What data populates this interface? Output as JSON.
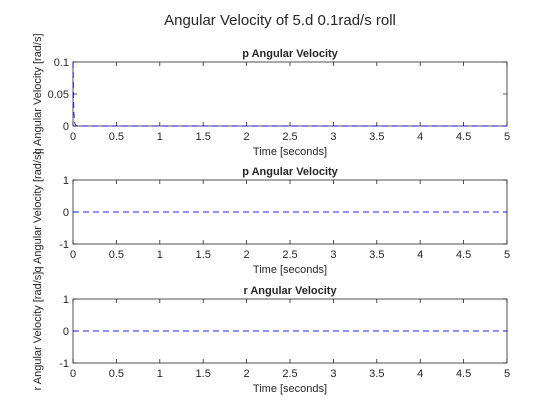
{
  "suptitle": "Angular Velocity of 5.d 0.1rad/s roll",
  "colors": {
    "line": "#0000ff",
    "axes": "#262626",
    "background": "#ffffff"
  },
  "chart_data": [
    {
      "type": "line",
      "title": "p Angular Velocity",
      "xlabel": "Time [seconds]",
      "ylabel": "q Angular Velocity [rad/s]",
      "xlim": [
        0,
        5
      ],
      "ylim": [
        0,
        0.1
      ],
      "xticks": [
        "0",
        "0.5",
        "1",
        "1.5",
        "2",
        "2.5",
        "3",
        "3.5",
        "4",
        "4.5",
        "5"
      ],
      "yticks": [
        "0",
        "0.05",
        "0.1"
      ],
      "ytick_values": [
        0,
        0.05,
        0.1
      ],
      "grid": false,
      "line_style": "dashed",
      "series": [
        {
          "x": [
            0,
            0.005,
            0.01,
            0.02,
            0.03,
            0.05,
            0.1,
            5
          ],
          "y": [
            0.1,
            0.05,
            0.02,
            0.005,
            0.001,
            0,
            0,
            0
          ]
        }
      ]
    },
    {
      "type": "line",
      "title": "p Angular Velocity",
      "xlabel": "Time [seconds]",
      "ylabel": "q Angular Velocity [rad/s]",
      "xlim": [
        0,
        5
      ],
      "ylim": [
        -1,
        1
      ],
      "xticks": [
        "0",
        "0.5",
        "1",
        "1.5",
        "2",
        "2.5",
        "3",
        "3.5",
        "4",
        "4.5",
        "5"
      ],
      "yticks": [
        "-1",
        "0",
        "1"
      ],
      "ytick_values": [
        -1,
        0,
        1
      ],
      "grid": false,
      "line_style": "dashed",
      "series": [
        {
          "x": [
            0,
            5
          ],
          "y": [
            0,
            0
          ]
        }
      ]
    },
    {
      "type": "line",
      "title": "r Angular Velocity",
      "xlabel": "Time [seconds]",
      "ylabel": "r Angular Velocity [rad/s]",
      "xlim": [
        0,
        5
      ],
      "ylim": [
        -1,
        1
      ],
      "xticks": [
        "0",
        "0.5",
        "1",
        "1.5",
        "2",
        "2.5",
        "3",
        "3.5",
        "4",
        "4.5",
        "5"
      ],
      "yticks": [
        "-1",
        "0",
        "1"
      ],
      "ytick_values": [
        -1,
        0,
        1
      ],
      "grid": false,
      "line_style": "dashed",
      "series": [
        {
          "x": [
            0,
            5
          ],
          "y": [
            0,
            0
          ]
        }
      ]
    }
  ]
}
